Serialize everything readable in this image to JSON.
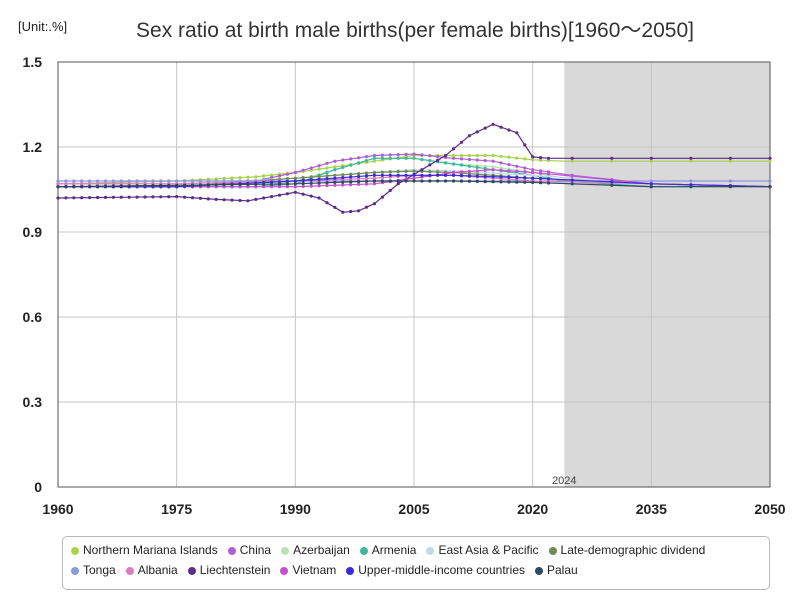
{
  "unit_label": "[Unit:.%]",
  "chart_data": {
    "type": "line",
    "title": "Sex ratio at birth male births(per female births)[1960～2050]",
    "xlabel": "",
    "ylabel": "",
    "xlim": [
      1960,
      2050
    ],
    "ylim": [
      0,
      1.5
    ],
    "x_ticks": [
      "1960",
      "1975",
      "1990",
      "2005",
      "2020",
      "2035",
      "2050"
    ],
    "y_ticks": [
      "0",
      "0.3",
      "0.6",
      "0.9",
      "1.2",
      "1.5"
    ],
    "grid": true,
    "projection_start": 2024,
    "projection_label": "2024",
    "legend_position": "bottom",
    "series": [
      {
        "name": "Northern Mariana Islands",
        "color": "#a8d44a",
        "points": [
          [
            1960,
            1.07
          ],
          [
            1975,
            1.08
          ],
          [
            1985,
            1.095
          ],
          [
            1990,
            1.11
          ],
          [
            1995,
            1.13
          ],
          [
            2000,
            1.15
          ],
          [
            2005,
            1.17
          ],
          [
            2010,
            1.17
          ],
          [
            2015,
            1.17
          ],
          [
            2020,
            1.155
          ],
          [
            2024,
            1.15
          ],
          [
            2035,
            1.15
          ],
          [
            2050,
            1.15
          ]
        ]
      },
      {
        "name": "China",
        "color": "#b05ed8",
        "points": [
          [
            1960,
            1.07
          ],
          [
            1975,
            1.07
          ],
          [
            1985,
            1.08
          ],
          [
            1990,
            1.11
          ],
          [
            1995,
            1.15
          ],
          [
            2000,
            1.17
          ],
          [
            2005,
            1.175
          ],
          [
            2010,
            1.16
          ],
          [
            2015,
            1.15
          ],
          [
            2020,
            1.12
          ],
          [
            2025,
            1.1
          ],
          [
            2035,
            1.07
          ],
          [
            2050,
            1.06
          ]
        ]
      },
      {
        "name": "Azerbaijan",
        "color": "#b8e3b0",
        "points": [
          [
            1960,
            1.06
          ],
          [
            1975,
            1.06
          ],
          [
            1985,
            1.06
          ],
          [
            1990,
            1.08
          ],
          [
            1995,
            1.12
          ],
          [
            2000,
            1.16
          ],
          [
            2005,
            1.16
          ],
          [
            2010,
            1.14
          ],
          [
            2015,
            1.13
          ],
          [
            2020,
            1.11
          ],
          [
            2024,
            1.09
          ],
          [
            2035,
            1.07
          ],
          [
            2050,
            1.06
          ]
        ]
      },
      {
        "name": "Armenia",
        "color": "#3cb89a",
        "points": [
          [
            1960,
            1.06
          ],
          [
            1975,
            1.06
          ],
          [
            1985,
            1.06
          ],
          [
            1990,
            1.07
          ],
          [
            1995,
            1.12
          ],
          [
            2000,
            1.16
          ],
          [
            2005,
            1.16
          ],
          [
            2010,
            1.14
          ],
          [
            2015,
            1.12
          ],
          [
            2020,
            1.1
          ],
          [
            2024,
            1.08
          ],
          [
            2035,
            1.06
          ],
          [
            2050,
            1.06
          ]
        ]
      },
      {
        "name": "East Asia & Pacific",
        "color": "#bfd9ea",
        "points": [
          [
            1960,
            1.07
          ],
          [
            1975,
            1.07
          ],
          [
            1990,
            1.09
          ],
          [
            2000,
            1.11
          ],
          [
            2005,
            1.12
          ],
          [
            2010,
            1.115
          ],
          [
            2020,
            1.1
          ],
          [
            2035,
            1.07
          ],
          [
            2050,
            1.06
          ]
        ]
      },
      {
        "name": "Late-demographic dividend",
        "color": "#6f8c55",
        "points": [
          [
            1960,
            1.06
          ],
          [
            1975,
            1.06
          ],
          [
            1990,
            1.09
          ],
          [
            2000,
            1.11
          ],
          [
            2005,
            1.115
          ],
          [
            2010,
            1.11
          ],
          [
            2020,
            1.09
          ],
          [
            2035,
            1.07
          ],
          [
            2050,
            1.06
          ]
        ]
      },
      {
        "name": "Tonga",
        "color": "#8d97e0",
        "points": [
          [
            1960,
            1.08
          ],
          [
            2024,
            1.08
          ],
          [
            2050,
            1.08
          ]
        ]
      },
      {
        "name": "Albania",
        "color": "#e07ac4",
        "points": [
          [
            1960,
            1.07
          ],
          [
            1975,
            1.07
          ],
          [
            1990,
            1.08
          ],
          [
            2000,
            1.09
          ],
          [
            2005,
            1.1
          ],
          [
            2010,
            1.1
          ],
          [
            2020,
            1.08
          ],
          [
            2035,
            1.07
          ],
          [
            2050,
            1.06
          ]
        ]
      },
      {
        "name": "Liechtenstein",
        "color": "#5b2e88",
        "points": [
          [
            1960,
            1.02
          ],
          [
            1975,
            1.025
          ],
          [
            1980,
            1.015
          ],
          [
            1984,
            1.01
          ],
          [
            1990,
            1.04
          ],
          [
            1993,
            1.02
          ],
          [
            1996,
            0.97
          ],
          [
            1998,
            0.975
          ],
          [
            2000,
            1.0
          ],
          [
            2003,
            1.07
          ],
          [
            2006,
            1.12
          ],
          [
            2009,
            1.17
          ],
          [
            2012,
            1.24
          ],
          [
            2015,
            1.28
          ],
          [
            2018,
            1.25
          ],
          [
            2020,
            1.165
          ],
          [
            2022,
            1.16
          ],
          [
            2050,
            1.16
          ]
        ]
      },
      {
        "name": "Vietnam",
        "color": "#c44fd0",
        "points": [
          [
            1960,
            1.06
          ],
          [
            1990,
            1.06
          ],
          [
            2000,
            1.07
          ],
          [
            2005,
            1.09
          ],
          [
            2010,
            1.11
          ],
          [
            2015,
            1.12
          ],
          [
            2020,
            1.11
          ],
          [
            2024,
            1.1
          ],
          [
            2035,
            1.07
          ],
          [
            2050,
            1.06
          ]
        ]
      },
      {
        "name": "Upper-middle-income countries",
        "color": "#3a2ad8",
        "points": [
          [
            1960,
            1.06
          ],
          [
            1975,
            1.06
          ],
          [
            1990,
            1.08
          ],
          [
            2000,
            1.1
          ],
          [
            2005,
            1.1
          ],
          [
            2010,
            1.1
          ],
          [
            2020,
            1.09
          ],
          [
            2035,
            1.07
          ],
          [
            2050,
            1.06
          ]
        ]
      },
      {
        "name": "Palau",
        "color": "#2f4a5e",
        "points": [
          [
            1960,
            1.06
          ],
          [
            1975,
            1.065
          ],
          [
            1990,
            1.07
          ],
          [
            2000,
            1.08
          ],
          [
            2010,
            1.08
          ],
          [
            2020,
            1.075
          ],
          [
            2035,
            1.06
          ],
          [
            2050,
            1.06
          ]
        ]
      }
    ]
  }
}
